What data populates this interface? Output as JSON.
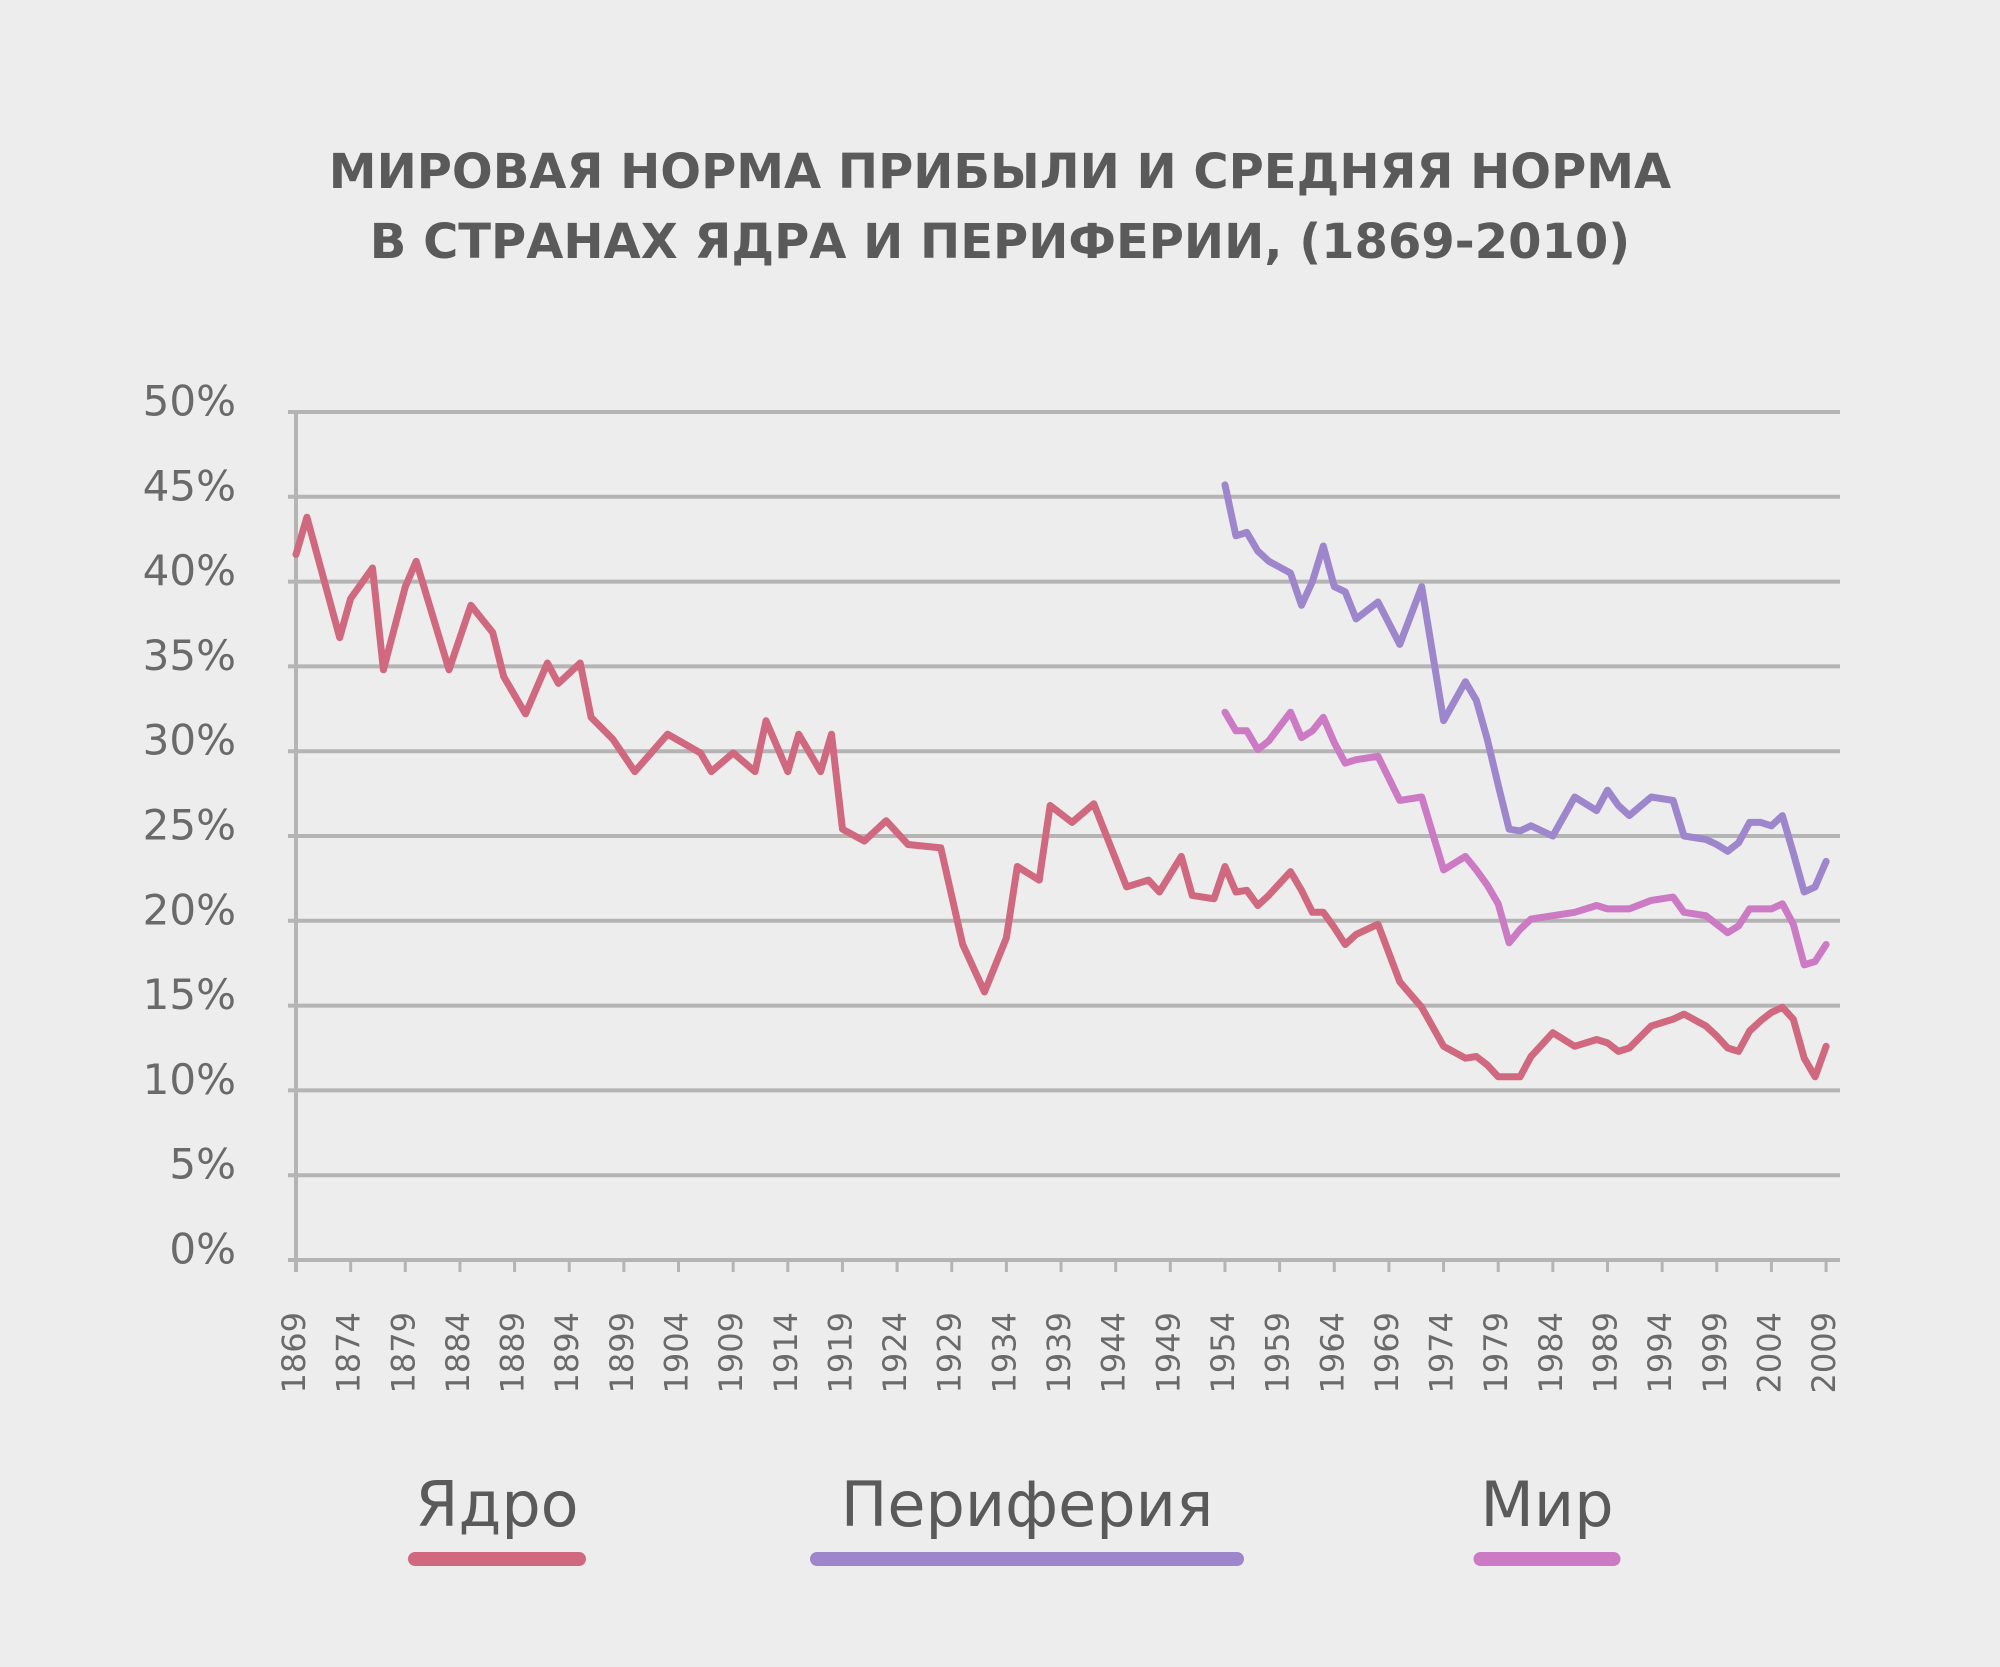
{
  "chart_data": {
    "type": "line",
    "title": [
      "МИРОВАЯ НОРМА ПРИБЫЛИ И СРЕДНЯЯ НОРМА",
      "В СТРАНАХ ЯДРА И ПЕРИФЕРИИ, (1869-2010)"
    ],
    "x": [
      1869,
      1870,
      1873,
      1874,
      1876,
      1877,
      1879,
      1880,
      1883,
      1885,
      1887,
      1888,
      1890,
      1892,
      1893,
      1895,
      1896,
      1898,
      1900,
      1903,
      1906,
      1907,
      1909,
      1911,
      1912,
      1914,
      1915,
      1917,
      1918,
      1919,
      1921,
      1923,
      1925,
      1928,
      1930,
      1932,
      1934,
      1935,
      1937,
      1938,
      1940,
      1942,
      1945,
      1947,
      1948,
      1950,
      1951,
      1953,
      1954,
      1955,
      1956,
      1957,
      1958,
      1960,
      1961,
      1962,
      1963,
      1964,
      1965,
      1966,
      1968,
      1970,
      1972,
      1974,
      1976,
      1977,
      1978,
      1979,
      1980,
      1981,
      1982,
      1984,
      1986,
      1988,
      1989,
      1990,
      1991,
      1993,
      1995,
      1996,
      1998,
      1999,
      2000,
      2001,
      2002,
      2003,
      2004,
      2005,
      2006,
      2007,
      2008,
      2009
    ],
    "series": [
      {
        "name": "Ядро",
        "color": "#d0697f",
        "values": [
          41.6,
          43.8,
          36.7,
          39,
          40.8,
          34.8,
          39.7,
          41.2,
          34.8,
          38.6,
          37,
          34.4,
          32.2,
          35.2,
          34,
          35.2,
          32,
          30.7,
          28.8,
          31,
          29.9,
          28.8,
          29.9,
          28.8,
          31.8,
          28.8,
          31,
          28.8,
          31,
          25.4,
          24.7,
          25.9,
          24.5,
          24.3,
          18.6,
          15.8,
          19,
          23.2,
          22.4,
          26.8,
          25.8,
          26.9,
          22,
          22.4,
          21.7,
          23.8,
          21.5,
          21.3,
          23.2,
          21.7,
          21.8,
          20.9,
          21.5,
          22.9,
          21.8,
          20.5,
          20.5,
          19.6,
          18.6,
          19.2,
          19.8,
          16.4,
          14.9,
          12.6,
          11.9,
          12,
          11.5,
          10.8,
          10.8,
          10.8,
          12,
          13.4,
          12.6,
          13,
          12.8,
          12.3,
          12.5,
          13.8,
          14.2,
          14.5,
          13.8,
          13.2,
          12.5,
          12.3,
          13.5,
          14.1,
          14.6,
          14.9,
          14.2,
          11.9,
          10.8,
          12.6
        ]
      },
      {
        "name": "Периферия",
        "color": "#9d86cc",
        "values": [
          null,
          null,
          null,
          null,
          null,
          null,
          null,
          null,
          null,
          null,
          null,
          null,
          null,
          null,
          null,
          null,
          null,
          null,
          null,
          null,
          null,
          null,
          null,
          null,
          null,
          null,
          null,
          null,
          null,
          null,
          null,
          null,
          null,
          null,
          null,
          null,
          null,
          null,
          null,
          null,
          null,
          null,
          null,
          null,
          null,
          null,
          null,
          null,
          45.7,
          42.7,
          42.9,
          41.8,
          41.2,
          40.5,
          38.6,
          40,
          42.1,
          39.7,
          39.4,
          37.8,
          38.8,
          36.3,
          39.7,
          31.8,
          34.1,
          33,
          30.7,
          28,
          25.4,
          25.3,
          25.6,
          25,
          27.3,
          26.5,
          27.7,
          26.8,
          26.2,
          27.3,
          27.1,
          25,
          24.8,
          24.5,
          24.1,
          24.6,
          25.8,
          25.8,
          25.6,
          26.2,
          24,
          21.7,
          22,
          23.5
        ]
      },
      {
        "name": "Мир",
        "color": "#cc7ac4",
        "values": [
          null,
          null,
          null,
          null,
          null,
          null,
          null,
          null,
          null,
          null,
          null,
          null,
          null,
          null,
          null,
          null,
          null,
          null,
          null,
          null,
          null,
          null,
          null,
          null,
          null,
          null,
          null,
          null,
          null,
          null,
          null,
          null,
          null,
          null,
          null,
          null,
          null,
          null,
          null,
          null,
          null,
          null,
          null,
          null,
          null,
          null,
          null,
          null,
          32.3,
          31.2,
          31.2,
          30.1,
          30.6,
          32.3,
          30.8,
          31.2,
          32,
          30.5,
          29.3,
          29.5,
          29.7,
          27.1,
          27.3,
          23,
          23.8,
          23,
          22.1,
          21,
          18.7,
          19.5,
          20.1,
          20.3,
          20.5,
          20.9,
          20.7,
          20.7,
          20.7,
          21.2,
          21.4,
          20.5,
          20.3,
          19.8,
          19.3,
          19.7,
          20.7,
          20.7,
          20.7,
          21,
          19.8,
          17.4,
          17.6,
          18.6
        ]
      }
    ],
    "xlim": [
      1869,
      2010
    ],
    "xticks": [
      1869,
      1874,
      1879,
      1884,
      1889,
      1894,
      1899,
      1904,
      1909,
      1914,
      1919,
      1924,
      1929,
      1934,
      1939,
      1944,
      1949,
      1954,
      1959,
      1964,
      1969,
      1974,
      1979,
      1984,
      1989,
      1994,
      1999,
      2004,
      2009
    ],
    "ylim": [
      0,
      50
    ],
    "yticks": [
      {
        "value": 0,
        "label": "0%"
      },
      {
        "value": 5,
        "label": "5%"
      },
      {
        "value": 10,
        "label": "10%"
      },
      {
        "value": 15,
        "label": "15%"
      },
      {
        "value": 20,
        "label": "20%"
      },
      {
        "value": 25,
        "label": "25%"
      },
      {
        "value": 30,
        "label": "30%"
      },
      {
        "value": 35,
        "label": "35%"
      },
      {
        "value": 40,
        "label": "40%"
      },
      {
        "value": 45,
        "label": "45%"
      },
      {
        "value": 50,
        "label": "50%"
      }
    ],
    "grid": true
  }
}
